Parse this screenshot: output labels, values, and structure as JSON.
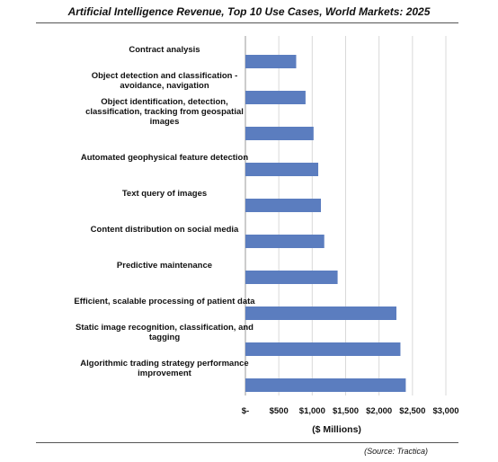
{
  "chart_data": {
    "type": "bar",
    "orientation": "horizontal",
    "title": "Artificial Intelligence Revenue, Top 10 Use Cases, World Markets: 2025",
    "xlabel": "($ Millions)",
    "ylabel": "",
    "xlim": [
      0,
      3000
    ],
    "x_ticks": [
      0,
      500,
      1000,
      1500,
      2000,
      2500,
      3000
    ],
    "x_tick_labels": [
      "$-",
      "$500",
      "$1,000",
      "$1,500",
      "$2,000",
      "$2,500",
      "$3,000"
    ],
    "grid": true,
    "legend": "none",
    "bar_color": "#5b7dbf",
    "categories": [
      [
        "Contract analysis"
      ],
      [
        "Object detection and classification -",
        "avoidance, navigation"
      ],
      [
        "Object identification, detection,",
        "classification, tracking from geospatial",
        "images"
      ],
      [
        "Automated geophysical feature detection"
      ],
      [
        "Text query of images"
      ],
      [
        "Content distribution on social media"
      ],
      [
        "Predictive maintenance"
      ],
      [
        "Efficient, scalable processing of patient data"
      ],
      [
        "Static image recognition, classification, and",
        "tagging"
      ],
      [
        "Algorithmic trading strategy performance",
        "improvement"
      ]
    ],
    "values": [
      760,
      900,
      1020,
      1090,
      1130,
      1180,
      1380,
      2260,
      2320,
      2400
    ]
  },
  "source": "(Source: Tractica)"
}
